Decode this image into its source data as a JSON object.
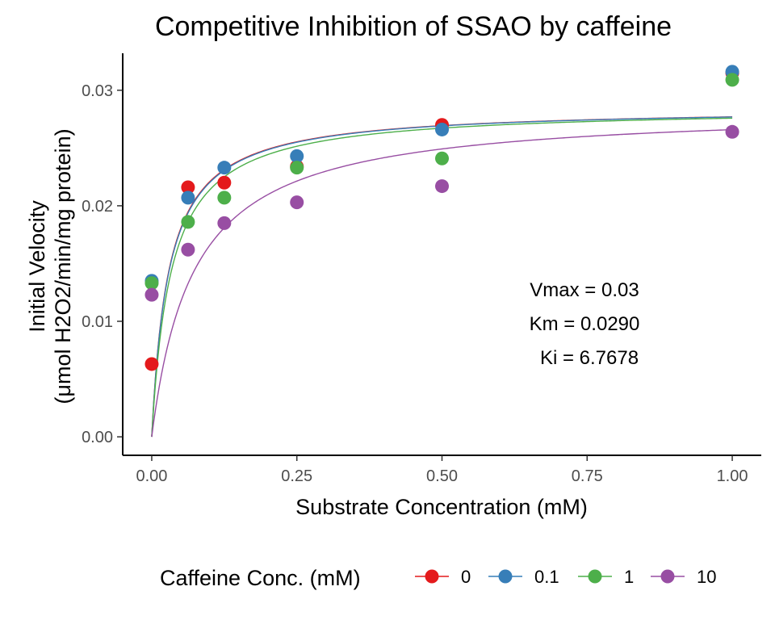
{
  "chart_data": {
    "type": "scatter",
    "title": "Competitive Inhibition of SSAO by caffeine",
    "xlabel": "Substrate Concentration (mM)",
    "ylabel_line1": "Initial Velocity",
    "ylabel_line2": "(μmol H2O2/min/mg protein)",
    "xlim": [
      -0.05,
      1.05
    ],
    "ylim": [
      -0.0016,
      0.0332
    ],
    "x_ticks": [
      0,
      0.25,
      0.5,
      0.75,
      1.0
    ],
    "x_tick_labels": [
      "0.00",
      "0.25",
      "0.50",
      "0.75",
      "1.00"
    ],
    "y_ticks": [
      0,
      0.01,
      0.02,
      0.03
    ],
    "y_tick_labels": [
      "0.00",
      "0.01",
      "0.02",
      "0.03"
    ],
    "grid": false,
    "legend_title": "Caffeine Conc. (mM)",
    "legend_position": "bottom",
    "annotations": [
      "Vmax = 0.03",
      "Km = 0.0290",
      "Ki = 6.7678"
    ],
    "model": {
      "vmax": 0.0285,
      "km": 0.029,
      "ki": 6.7678
    },
    "series": [
      {
        "name": "0",
        "inhibitor": 0,
        "color": "#e41a1c",
        "x": [
          0,
          0.0625,
          0.125,
          0.25,
          0.5,
          1.0
        ],
        "y": [
          0.0063,
          0.0216,
          0.022,
          0.0234,
          0.027,
          0.0315
        ]
      },
      {
        "name": "0.1",
        "inhibitor": 0.1,
        "color": "#377eb8",
        "x": [
          0,
          0.0625,
          0.125,
          0.25,
          0.5,
          1.0
        ],
        "y": [
          0.0135,
          0.0207,
          0.0233,
          0.0243,
          0.0266,
          0.0316
        ]
      },
      {
        "name": "1",
        "inhibitor": 1,
        "color": "#4daf4a",
        "x": [
          0,
          0.0625,
          0.125,
          0.25,
          0.5,
          1.0
        ],
        "y": [
          0.0133,
          0.0186,
          0.0207,
          0.0233,
          0.0241,
          0.0309
        ]
      },
      {
        "name": "10",
        "inhibitor": 10,
        "color": "#984ea3",
        "x": [
          0,
          0.0625,
          0.125,
          0.25,
          0.5,
          1.0
        ],
        "y": [
          0.0123,
          0.0162,
          0.0185,
          0.0203,
          0.0217,
          0.0264
        ]
      }
    ]
  }
}
